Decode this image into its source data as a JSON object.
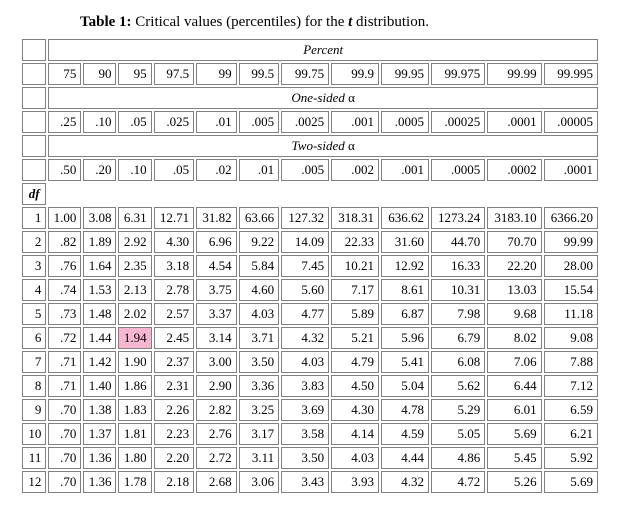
{
  "title_prefix": "Table 1:",
  "title_rest_a": " Critical values (percentiles) for the ",
  "title_t": "t",
  "title_rest_b": " distribution.",
  "sections": {
    "percent": "Percent",
    "one_sided": "One-sided ",
    "two_sided": "Two-sided ",
    "alpha": "α"
  },
  "df_label": "df",
  "percent_row": [
    "75",
    "90",
    "95",
    "97.5",
    "99",
    "99.5",
    "99.75",
    "99.9",
    "99.95",
    "99.975",
    "99.99",
    "99.995"
  ],
  "one_sided_row": [
    ".25",
    ".10",
    ".05",
    ".025",
    ".01",
    ".005",
    ".0025",
    ".001",
    ".0005",
    ".00025",
    ".0001",
    ".00005"
  ],
  "two_sided_row": [
    ".50",
    ".20",
    ".10",
    ".05",
    ".02",
    ".01",
    ".005",
    ".002",
    ".001",
    ".0005",
    ".0002",
    ".0001"
  ],
  "highlight": {
    "row": 5,
    "col": 2
  },
  "highlight_color": "#f7b7d0",
  "rows": [
    {
      "df": "1",
      "v": [
        "1.00",
        "3.08",
        "6.31",
        "12.71",
        "31.82",
        "63.66",
        "127.32",
        "318.31",
        "636.62",
        "1273.24",
        "3183.10",
        "6366.20"
      ]
    },
    {
      "df": "2",
      "v": [
        ".82",
        "1.89",
        "2.92",
        "4.30",
        "6.96",
        "9.22",
        "14.09",
        "22.33",
        "31.60",
        "44.70",
        "70.70",
        "99.99"
      ]
    },
    {
      "df": "3",
      "v": [
        ".76",
        "1.64",
        "2.35",
        "3.18",
        "4.54",
        "5.84",
        "7.45",
        "10.21",
        "12.92",
        "16.33",
        "22.20",
        "28.00"
      ]
    },
    {
      "df": "4",
      "v": [
        ".74",
        "1.53",
        "2.13",
        "2.78",
        "3.75",
        "4.60",
        "5.60",
        "7.17",
        "8.61",
        "10.31",
        "13.03",
        "15.54"
      ]
    },
    {
      "df": "5",
      "v": [
        ".73",
        "1.48",
        "2.02",
        "2.57",
        "3.37",
        "4.03",
        "4.77",
        "5.89",
        "6.87",
        "7.98",
        "9.68",
        "11.18"
      ]
    },
    {
      "df": "6",
      "v": [
        ".72",
        "1.44",
        "1.94",
        "2.45",
        "3.14",
        "3.71",
        "4.32",
        "5.21",
        "5.96",
        "6.79",
        "8.02",
        "9.08"
      ]
    },
    {
      "df": "7",
      "v": [
        ".71",
        "1.42",
        "1.90",
        "2.37",
        "3.00",
        "3.50",
        "4.03",
        "4.79",
        "5.41",
        "6.08",
        "7.06",
        "7.88"
      ]
    },
    {
      "df": "8",
      "v": [
        ".71",
        "1.40",
        "1.86",
        "2.31",
        "2.90",
        "3.36",
        "3.83",
        "4.50",
        "5.04",
        "5.62",
        "6.44",
        "7.12"
      ]
    },
    {
      "df": "9",
      "v": [
        ".70",
        "1.38",
        "1.83",
        "2.26",
        "2.82",
        "3.25",
        "3.69",
        "4.30",
        "4.78",
        "5.29",
        "6.01",
        "6.59"
      ]
    },
    {
      "df": "10",
      "v": [
        ".70",
        "1.37",
        "1.81",
        "2.23",
        "2.76",
        "3.17",
        "3.58",
        "4.14",
        "4.59",
        "5.05",
        "5.69",
        "6.21"
      ]
    },
    {
      "df": "11",
      "v": [
        ".70",
        "1.36",
        "1.80",
        "2.20",
        "2.72",
        "3.11",
        "3.50",
        "4.03",
        "4.44",
        "4.86",
        "5.45",
        "5.92"
      ]
    },
    {
      "df": "12",
      "v": [
        ".70",
        "1.36",
        "1.78",
        "2.18",
        "2.68",
        "3.06",
        "3.43",
        "3.93",
        "4.32",
        "4.72",
        "5.26",
        "5.69"
      ]
    }
  ]
}
